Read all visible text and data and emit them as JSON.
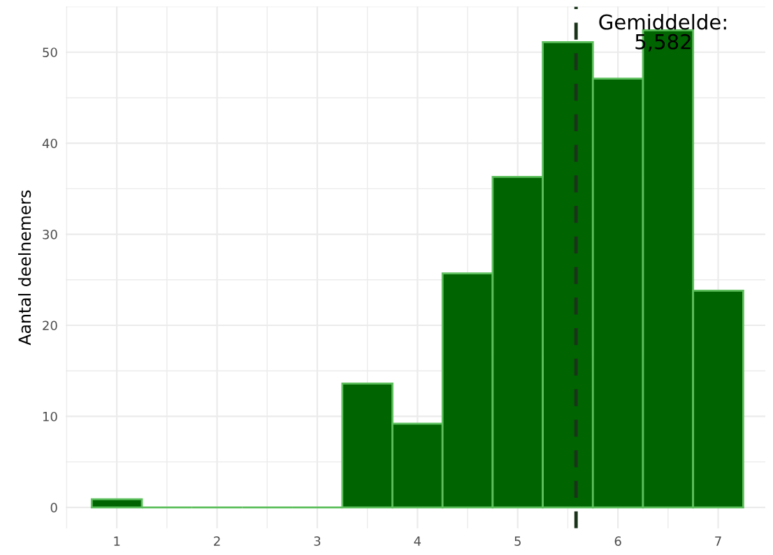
{
  "chart_data": {
    "type": "histogram",
    "ylabel": "Aantal deelnemers",
    "bins": [
      0.75,
      1.25,
      1.75,
      2.25,
      2.75,
      3.25,
      3.75,
      4.25,
      4.75,
      5.25,
      5.75,
      6.25,
      6.75,
      7.25
    ],
    "values": [
      0.9,
      0,
      0,
      0,
      0,
      13.6,
      9.2,
      25.7,
      36.3,
      51.1,
      47.1,
      52.4,
      23.8
    ],
    "color": "#006400",
    "xlim": [
      0.49,
      7.47
    ],
    "ylim": [
      -2.3,
      55
    ],
    "xticks": [
      1,
      2,
      3,
      4,
      5,
      6,
      7
    ],
    "yticks": [
      0,
      10,
      20,
      30,
      40,
      50
    ],
    "grid": true,
    "ref_lines": [
      {
        "axis": "x",
        "value": 5.582,
        "label": "Gemiddelde:\n5,582",
        "color": "#1a331a",
        "line_style": "dashed"
      }
    ]
  }
}
